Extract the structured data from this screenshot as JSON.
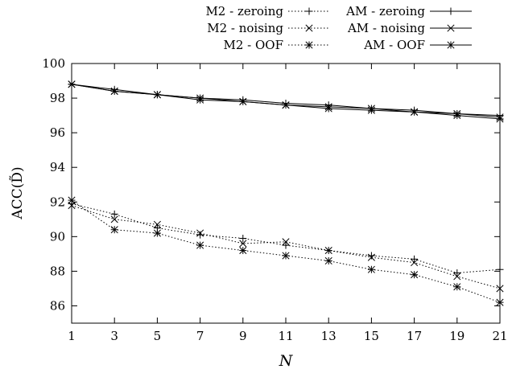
{
  "chart_data": {
    "type": "line",
    "title": "",
    "xlabel": "N",
    "ylabel": "ACC(D̃)",
    "xlim": [
      1,
      21
    ],
    "ylim": [
      85,
      100
    ],
    "x_ticks": [
      1,
      3,
      5,
      7,
      9,
      11,
      13,
      15,
      17,
      19,
      21
    ],
    "y_ticks": [
      86,
      88,
      90,
      92,
      94,
      96,
      98,
      100
    ],
    "grid": false,
    "legend_position": "top",
    "x": [
      1,
      3,
      5,
      7,
      9,
      11,
      13,
      15,
      17,
      19,
      21
    ],
    "series": [
      {
        "name": "M2 - zeroing",
        "style": "dotted",
        "marker": "plus",
        "values": [
          91.9,
          91.3,
          90.5,
          90.1,
          89.9,
          89.5,
          89.2,
          88.9,
          88.7,
          87.9,
          88.1
        ]
      },
      {
        "name": "M2 - noising",
        "style": "dotted",
        "marker": "cross",
        "values": [
          91.8,
          91.0,
          90.7,
          90.2,
          89.6,
          89.7,
          89.2,
          88.8,
          88.5,
          87.7,
          87.0
        ]
      },
      {
        "name": "M2 - OOF",
        "style": "dotted",
        "marker": "star",
        "values": [
          92.1,
          90.4,
          90.2,
          89.5,
          89.2,
          88.9,
          88.6,
          88.1,
          87.8,
          87.1,
          86.2
        ]
      },
      {
        "name": "AM - zeroing",
        "style": "solid",
        "marker": "plus",
        "values": [
          98.8,
          98.5,
          98.2,
          98.0,
          97.9,
          97.7,
          97.6,
          97.4,
          97.3,
          97.1,
          97.0
        ]
      },
      {
        "name": "AM - noising",
        "style": "solid",
        "marker": "cross",
        "values": [
          98.8,
          98.4,
          98.2,
          98.0,
          97.8,
          97.6,
          97.5,
          97.4,
          97.2,
          97.1,
          96.9
        ]
      },
      {
        "name": "AM - OOF",
        "style": "solid",
        "marker": "star",
        "values": [
          98.8,
          98.4,
          98.2,
          97.9,
          97.8,
          97.6,
          97.4,
          97.3,
          97.2,
          97.0,
          96.8
        ]
      }
    ]
  }
}
